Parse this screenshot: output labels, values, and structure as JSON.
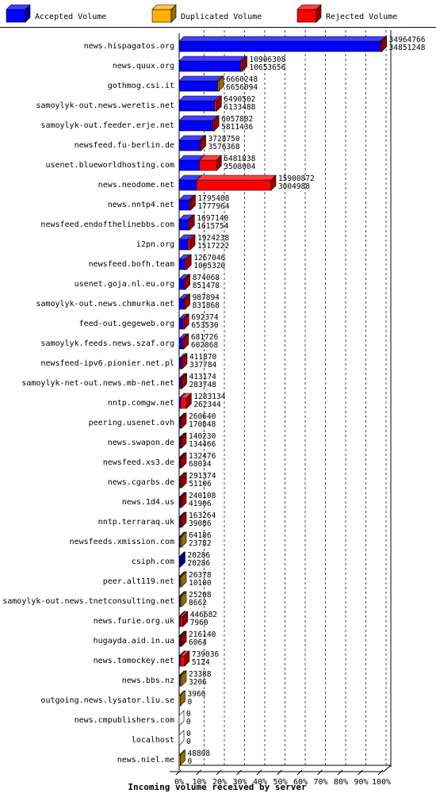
{
  "chart_data": {
    "type": "bar",
    "title": "Incoming volume received by server",
    "legend": [
      {
        "name": "Accepted Volume",
        "color": "#0000ff"
      },
      {
        "name": "Duplicated Volume",
        "color": "#ffb200"
      },
      {
        "name": "Rejected Volume",
        "color": "#ff0000"
      }
    ],
    "x_ticks": [
      "0%",
      "10%",
      "20%",
      "30%",
      "40%",
      "50%",
      "60%",
      "70%",
      "80%",
      "90%",
      "100%"
    ],
    "xlim": [
      0,
      100
    ],
    "max_total": 34964766,
    "grid": true,
    "rows": [
      {
        "server": "news.hispagatos.org",
        "total": 34964766,
        "accepted": 34851248,
        "duplicated": 0,
        "rejected": 113518,
        "label_top": "34964766",
        "label_bottom": "34851248"
      },
      {
        "server": "news.quux.org",
        "total": 10906308,
        "accepted": 10653656,
        "duplicated": 0,
        "rejected": 252652,
        "label_top": "10906308",
        "label_bottom": "10653656"
      },
      {
        "server": "gothmog.csi.it",
        "total": 6660248,
        "accepted": 6656094,
        "duplicated": 4154,
        "rejected": 0,
        "label_top": "6660248",
        "label_bottom": "6656094"
      },
      {
        "server": "samoylyk-out.news.weretis.net",
        "total": 6490502,
        "accepted": 6133488,
        "duplicated": 0,
        "rejected": 357014,
        "label_top": "6490502",
        "label_bottom": "6133488"
      },
      {
        "server": "samoylyk-out.feeder.erje.net",
        "total": 6057802,
        "accepted": 5811436,
        "duplicated": 0,
        "rejected": 246366,
        "label_top": "6057802",
        "label_bottom": "5811436"
      },
      {
        "server": "newsfeed.fu-berlin.de",
        "total": 3728750,
        "accepted": 3576368,
        "duplicated": 0,
        "rejected": 152382,
        "label_top": "3728750",
        "label_bottom": "3576368"
      },
      {
        "server": "usenet.blueworldhosting.com",
        "total": 6481838,
        "accepted": 3508004,
        "duplicated": 0,
        "rejected": 2973834,
        "label_top": "6481838",
        "label_bottom": "3508004"
      },
      {
        "server": "news.neodome.net",
        "total": 15900872,
        "accepted": 3004988,
        "duplicated": 0,
        "rejected": 12895884,
        "label_top": "15900872",
        "label_bottom": "3004988"
      },
      {
        "server": "news.nntp4.net",
        "total": 1795408,
        "accepted": 1777964,
        "duplicated": 0,
        "rejected": 17444,
        "label_top": "1795408",
        "label_bottom": "1777964"
      },
      {
        "server": "newsfeed.endofthelinebbs.com",
        "total": 1697140,
        "accepted": 1615754,
        "duplicated": 0,
        "rejected": 81386,
        "label_top": "1697140",
        "label_bottom": "1615754"
      },
      {
        "server": "i2pn.org",
        "total": 1924238,
        "accepted": 1517222,
        "duplicated": 0,
        "rejected": 407016,
        "label_top": "1924238",
        "label_bottom": "1517222"
      },
      {
        "server": "newsfeed.bofh.team",
        "total": 1267046,
        "accepted": 1005320,
        "duplicated": 0,
        "rejected": 261726,
        "label_top": "1267046",
        "label_bottom": "1005320"
      },
      {
        "server": "usenet.goja.nl.eu.org",
        "total": 874068,
        "accepted": 851478,
        "duplicated": 0,
        "rejected": 22590,
        "label_top": "874068",
        "label_bottom": "851478"
      },
      {
        "server": "samoylyk-out.news.chmurka.net",
        "total": 987894,
        "accepted": 831868,
        "duplicated": 0,
        "rejected": 156026,
        "label_top": "987894",
        "label_bottom": "831868"
      },
      {
        "server": "feed-out.gegeweb.org",
        "total": 692374,
        "accepted": 653530,
        "duplicated": 0,
        "rejected": 38844,
        "label_top": "692374",
        "label_bottom": "653530"
      },
      {
        "server": "samoylyk.feeds.news.szaf.org",
        "total": 681726,
        "accepted": 602868,
        "duplicated": 0,
        "rejected": 78858,
        "label_top": "681726",
        "label_bottom": "602868"
      },
      {
        "server": "newsfeed-ipv6.pionier.net.pl",
        "total": 411870,
        "accepted": 337784,
        "duplicated": 0,
        "rejected": 74086,
        "label_top": "411870",
        "label_bottom": "337784"
      },
      {
        "server": "samoylyk-net-out.news.mb-net.net",
        "total": 413174,
        "accepted": 283748,
        "duplicated": 0,
        "rejected": 129426,
        "label_top": "413174",
        "label_bottom": "283748"
      },
      {
        "server": "nntp.comgw.net",
        "total": 1283134,
        "accepted": 262344,
        "duplicated": 0,
        "rejected": 1020790,
        "label_top": "1283134",
        "label_bottom": "262344"
      },
      {
        "server": "peering.usenet.ovh",
        "total": 260640,
        "accepted": 170848,
        "duplicated": 0,
        "rejected": 89792,
        "label_top": "260640",
        "label_bottom": "170848"
      },
      {
        "server": "news.swapon.de",
        "total": 140230,
        "accepted": 134466,
        "duplicated": 0,
        "rejected": 5764,
        "label_top": "140230",
        "label_bottom": "134466"
      },
      {
        "server": "newsfeed.xs3.de",
        "total": 132476,
        "accepted": 68034,
        "duplicated": 0,
        "rejected": 64442,
        "label_top": "132476",
        "label_bottom": "68034"
      },
      {
        "server": "news.cgarbs.de",
        "total": 291374,
        "accepted": 51106,
        "duplicated": 0,
        "rejected": 240268,
        "label_top": "291374",
        "label_bottom": "51106"
      },
      {
        "server": "news.1d4.us",
        "total": 240108,
        "accepted": 41906,
        "duplicated": 0,
        "rejected": 198202,
        "label_top": "240108",
        "label_bottom": "41906"
      },
      {
        "server": "nntp.terraraq.uk",
        "total": 163264,
        "accepted": 39086,
        "duplicated": 0,
        "rejected": 124178,
        "label_top": "163264",
        "label_bottom": "39086"
      },
      {
        "server": "newsfeeds.xmission.com",
        "total": 64186,
        "accepted": 23782,
        "duplicated": 40404,
        "rejected": 0,
        "label_top": "64186",
        "label_bottom": "23782"
      },
      {
        "server": "csiph.com",
        "total": 20286,
        "accepted": 20286,
        "duplicated": 0,
        "rejected": 0,
        "label_top": "20286",
        "label_bottom": "20286"
      },
      {
        "server": "peer.alt119.net",
        "total": 26378,
        "accepted": 10100,
        "duplicated": 16278,
        "rejected": 0,
        "label_top": "26378",
        "label_bottom": "10100"
      },
      {
        "server": "samoylyk-out.news.tnetconsulting.net",
        "total": 25208,
        "accepted": 8662,
        "duplicated": 16546,
        "rejected": 0,
        "label_top": "25208",
        "label_bottom": "8662"
      },
      {
        "server": "news.furie.org.uk",
        "total": 446682,
        "accepted": 7960,
        "duplicated": 0,
        "rejected": 438722,
        "label_top": "446682",
        "label_bottom": "7960"
      },
      {
        "server": "hugayda.aid.in.ua",
        "total": 216140,
        "accepted": 6064,
        "duplicated": 0,
        "rejected": 210076,
        "label_top": "216140",
        "label_bottom": "6064"
      },
      {
        "server": "news.tomockey.net",
        "total": 739036,
        "accepted": 5124,
        "duplicated": 0,
        "rejected": 733912,
        "label_top": "739036",
        "label_bottom": "5124"
      },
      {
        "server": "news.bbs.nz",
        "total": 23388,
        "accepted": 3206,
        "duplicated": 20182,
        "rejected": 0,
        "label_top": "23388",
        "label_bottom": "3206"
      },
      {
        "server": "outgoing.news.lysator.liu.se",
        "total": 3966,
        "accepted": 0,
        "duplicated": 3966,
        "rejected": 0,
        "label_top": "3966",
        "label_bottom": "0"
      },
      {
        "server": "news.cmpublishers.com",
        "total": 0,
        "accepted": 0,
        "duplicated": 0,
        "rejected": 0,
        "label_top": "0",
        "label_bottom": "0"
      },
      {
        "server": "localhost",
        "total": 0,
        "accepted": 0,
        "duplicated": 0,
        "rejected": 0,
        "label_top": "0",
        "label_bottom": "0"
      },
      {
        "server": "news.niel.me",
        "total": 48808,
        "accepted": 0,
        "duplicated": 48808,
        "rejected": 0,
        "label_top": "48808",
        "label_bottom": "0"
      }
    ]
  }
}
